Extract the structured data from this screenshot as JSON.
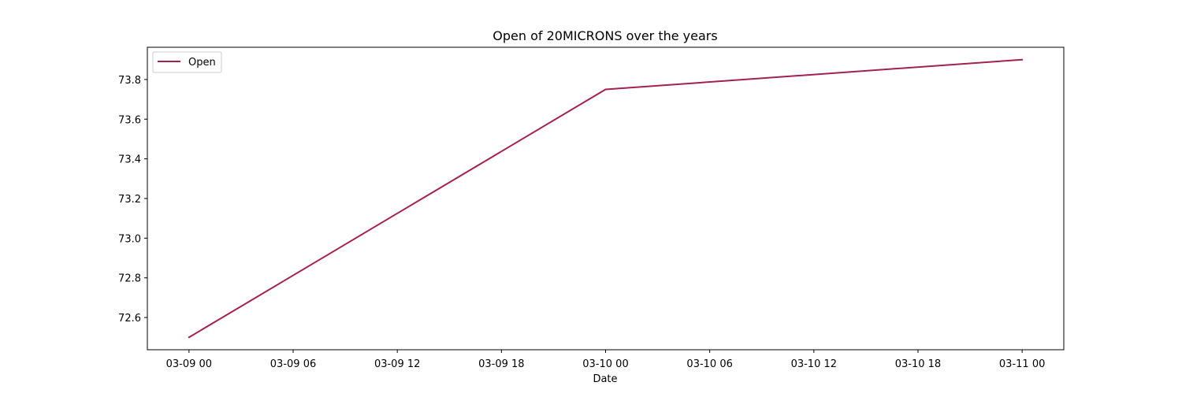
{
  "chart_data": {
    "type": "line",
    "title": "Open of 20MICRONS  over the years",
    "xlabel": "Date",
    "ylabel": "",
    "x": [
      "03-09 00",
      "03-10 00",
      "03-11 00"
    ],
    "x_hours": [
      0,
      24,
      48
    ],
    "xlim_hours": [
      -2.4,
      50.4
    ],
    "ylim": [
      72.4375,
      73.9625
    ],
    "xticks": [
      {
        "label": "03-09 00",
        "hours": 0
      },
      {
        "label": "03-09 06",
        "hours": 6
      },
      {
        "label": "03-09 12",
        "hours": 12
      },
      {
        "label": "03-09 18",
        "hours": 18
      },
      {
        "label": "03-10 00",
        "hours": 24
      },
      {
        "label": "03-10 06",
        "hours": 30
      },
      {
        "label": "03-10 12",
        "hours": 36
      },
      {
        "label": "03-10 18",
        "hours": 42
      },
      {
        "label": "03-11 00",
        "hours": 48
      }
    ],
    "yticks": [
      72.6,
      72.8,
      73.0,
      73.2,
      73.4,
      73.6,
      73.8
    ],
    "ytick_labels": [
      "72.6",
      "72.8",
      "73.0",
      "73.2",
      "73.4",
      "73.6",
      "73.8"
    ],
    "series": [
      {
        "name": "Open",
        "color": "#a3214d",
        "values": [
          72.5,
          73.75,
          73.9
        ]
      }
    ],
    "grid": false,
    "legend": {
      "position": "top-left",
      "entries": [
        "Open"
      ]
    }
  }
}
